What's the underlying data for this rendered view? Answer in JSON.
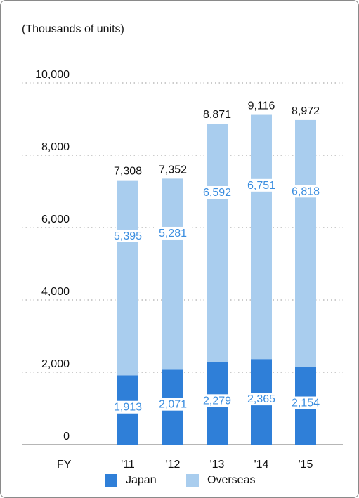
{
  "chart_data": {
    "type": "bar",
    "stacked": true,
    "unit_label": "(Thousands of units)",
    "x_axis_prefix": "FY",
    "categories": [
      "'11",
      "'12",
      "'13",
      "'14",
      "'15"
    ],
    "series": [
      {
        "name": "Japan",
        "values": [
          1913,
          2071,
          2279,
          2365,
          2154
        ],
        "color": "#2f7fd8"
      },
      {
        "name": "Overseas",
        "values": [
          5395,
          5281,
          6592,
          6751,
          6818
        ],
        "color": "#a9cdee"
      }
    ],
    "totals": [
      7308,
      7352,
      8871,
      9116,
      8972
    ],
    "data_labels": {
      "Japan": [
        "1,913",
        "2,071",
        "2,279",
        "2,365",
        "2,154"
      ],
      "Overseas": [
        "5,395",
        "5,281",
        "6,592",
        "6,751",
        "6,818"
      ],
      "totals": [
        "7,308",
        "7,352",
        "8,871",
        "9,116",
        "8,972"
      ]
    },
    "y_ticks": [
      0,
      2000,
      4000,
      6000,
      8000,
      10000
    ],
    "y_tick_labels": [
      "0",
      "2,000",
      "4,000",
      "6,000",
      "8,000",
      "10,000"
    ],
    "ylim": [
      0,
      10000
    ],
    "grid": "dotted-horizontal",
    "legend_position": "bottom-center",
    "label_color": "#3b8ee0"
  }
}
